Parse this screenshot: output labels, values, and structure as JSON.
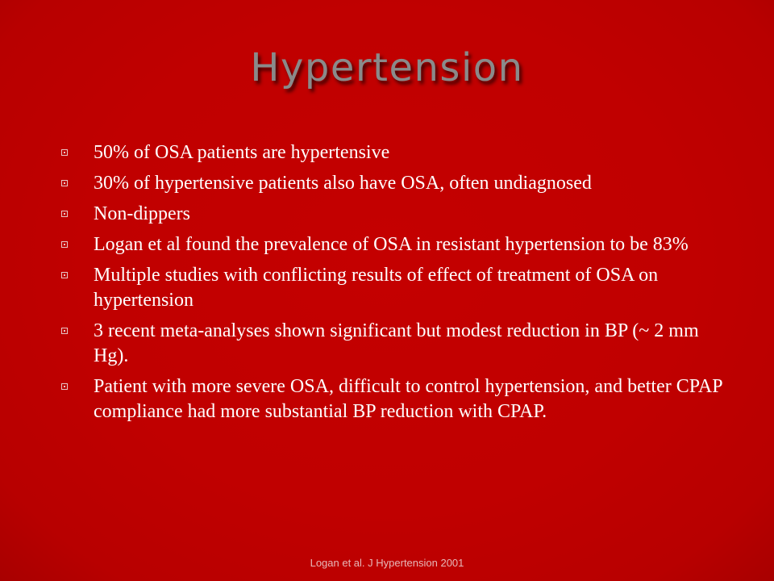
{
  "slide": {
    "title": "Hypertension",
    "bullets": [
      "50% of OSA patients are hypertensive",
      "30% of hypertensive patients also have OSA, often undiagnosed",
      "Non-dippers",
      "Logan et al found the prevalence of OSA in resistant hypertension to be 83%",
      "Multiple studies with conflicting results of effect of treatment of OSA on hypertension",
      "3 recent meta-analyses shown significant but modest reduction in BP (~ 2 mm Hg).",
      "Patient with more severe OSA, difficult to control hypertension, and better CPAP compliance had more substantial BP reduction with CPAP."
    ],
    "bullet_icon": "square-dot-bullet-icon",
    "citation": "Logan et al.  J Hypertension 2001"
  },
  "colors": {
    "background": "#c00000",
    "title": "#8a8a8a",
    "text": "#ffffff",
    "citation": "#e6b8b8"
  }
}
